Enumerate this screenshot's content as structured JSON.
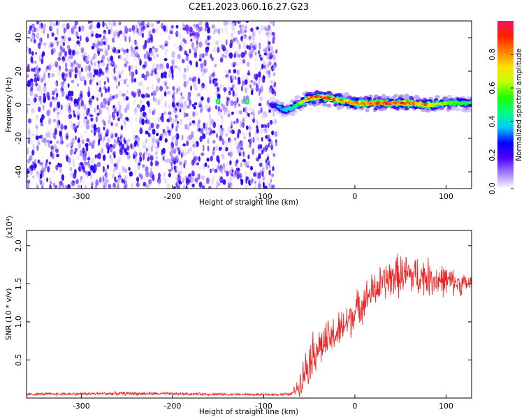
{
  "title": "C2E1.2023.060.16.27.G23",
  "chart_data": [
    {
      "type": "heatmap",
      "xlabel": "Height of straight line (km)",
      "ylabel": "Frequency (Hz)",
      "xlim": [
        -360,
        128
      ],
      "ylim": [
        -50,
        50
      ],
      "x_ticks": [
        -300,
        -200,
        -100,
        0,
        100
      ],
      "y_ticks": [
        -40,
        -20,
        0,
        20,
        40
      ],
      "x_tick_labels": [
        "-300",
        "-200",
        "-100",
        "0",
        "100"
      ],
      "y_tick_labels": [
        "-40",
        "-20",
        "0",
        "20",
        "40"
      ],
      "description_regions": {
        "noise_region_x": [
          -360,
          -90
        ],
        "signal_trace": {
          "x": [
            -92,
            -85,
            -78,
            -70,
            -60,
            -50,
            -40,
            -30,
            -20,
            -10,
            0,
            20,
            40,
            60,
            80,
            100,
            128
          ],
          "freq": [
            0,
            -1,
            -3,
            -2,
            1,
            4,
            5,
            4,
            3,
            2,
            1,
            1,
            1,
            1,
            0,
            1,
            1
          ],
          "peak_amplitude": [
            0.2,
            0.35,
            0.4,
            0.45,
            0.6,
            0.85,
            0.9,
            0.9,
            0.85,
            0.85,
            0.9,
            0.9,
            0.9,
            0.9,
            0.85,
            0.6,
            0.5
          ]
        },
        "isolated_spots": [
          {
            "x": -150,
            "freq": 2
          },
          {
            "x": -118,
            "freq": 2
          }
        ]
      },
      "colorbar": {
        "label": "Normalized spectral amplitude",
        "range": [
          0,
          1
        ],
        "ticks": [
          0.0,
          0.2,
          0.4,
          0.6,
          0.8
        ],
        "tick_labels": [
          "0.0",
          "0.2",
          "0.4",
          "0.6",
          "0.8"
        ],
        "colors": [
          "#ffffff",
          "#a080ff",
          "#5000ff",
          "#0000ff",
          "#00c8ff",
          "#00ff80",
          "#20ff00",
          "#c0ff00",
          "#ffe000",
          "#ff8000",
          "#ff2000",
          "#ff1060"
        ]
      }
    },
    {
      "type": "line",
      "xlabel": "Height of straight line (km)",
      "ylabel": "SNR (10 * v/v)",
      "y_multiplier": "(x10⁴)",
      "xlim": [
        -360,
        128
      ],
      "ylim": [
        0,
        22000
      ],
      "x_ticks": [
        -300,
        -200,
        -100,
        0,
        100
      ],
      "y_ticks": [
        5000,
        10000,
        15000,
        20000
      ],
      "x_tick_labels": [
        "-300",
        "-200",
        "-100",
        "0",
        "100"
      ],
      "y_tick_labels": [
        "0.5",
        "1.0",
        "1.5",
        "2.0"
      ],
      "line_color": "#ee2222",
      "envelope": {
        "x": [
          -360,
          -250,
          -100,
          -70,
          -62,
          -55,
          -48,
          -42,
          -35,
          -25,
          -15,
          -5,
          5,
          15,
          25,
          35,
          45,
          55,
          65,
          75,
          85,
          95,
          105,
          115,
          128
        ],
        "mean": [
          500,
          600,
          450,
          500,
          1500,
          3500,
          5500,
          6500,
          7000,
          8000,
          9000,
          10500,
          12000,
          13500,
          14500,
          15500,
          16000,
          16200,
          16000,
          16000,
          15700,
          15500,
          15300,
          15000,
          15000
        ],
        "spread": [
          200,
          250,
          150,
          200,
          1200,
          2500,
          3000,
          3000,
          2600,
          2600,
          2600,
          2600,
          2500,
          2400,
          2500,
          2600,
          2800,
          2800,
          2700,
          2600,
          2400,
          2200,
          1800,
          1500,
          1300
        ]
      }
    }
  ]
}
